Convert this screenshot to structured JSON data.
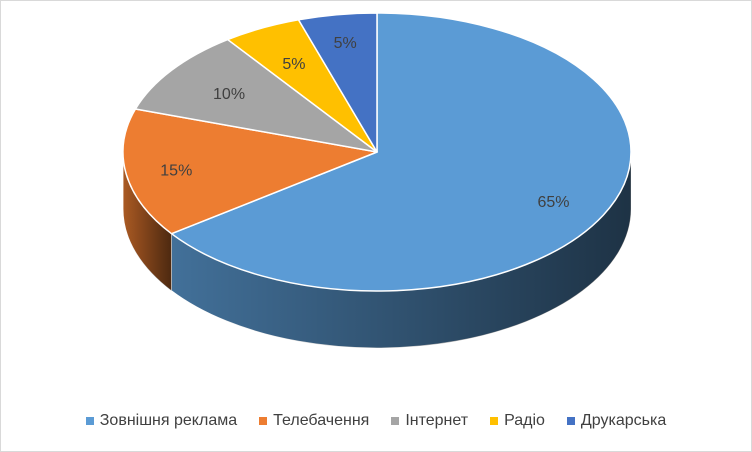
{
  "chart_data": {
    "type": "pie",
    "style": "3d",
    "categories": [
      "Зовнішня реклама",
      "Телебачення",
      "Інтернет",
      "Радіо",
      "Друкарська"
    ],
    "values": [
      65,
      15,
      10,
      5,
      5
    ],
    "value_labels": [
      "65%",
      "15%",
      "10%",
      "5%",
      "5%"
    ],
    "colors": [
      "#5b9bd5",
      "#ed7d31",
      "#a5a5a5",
      "#ffc000",
      "#4472c4"
    ],
    "legend_position": "bottom"
  }
}
